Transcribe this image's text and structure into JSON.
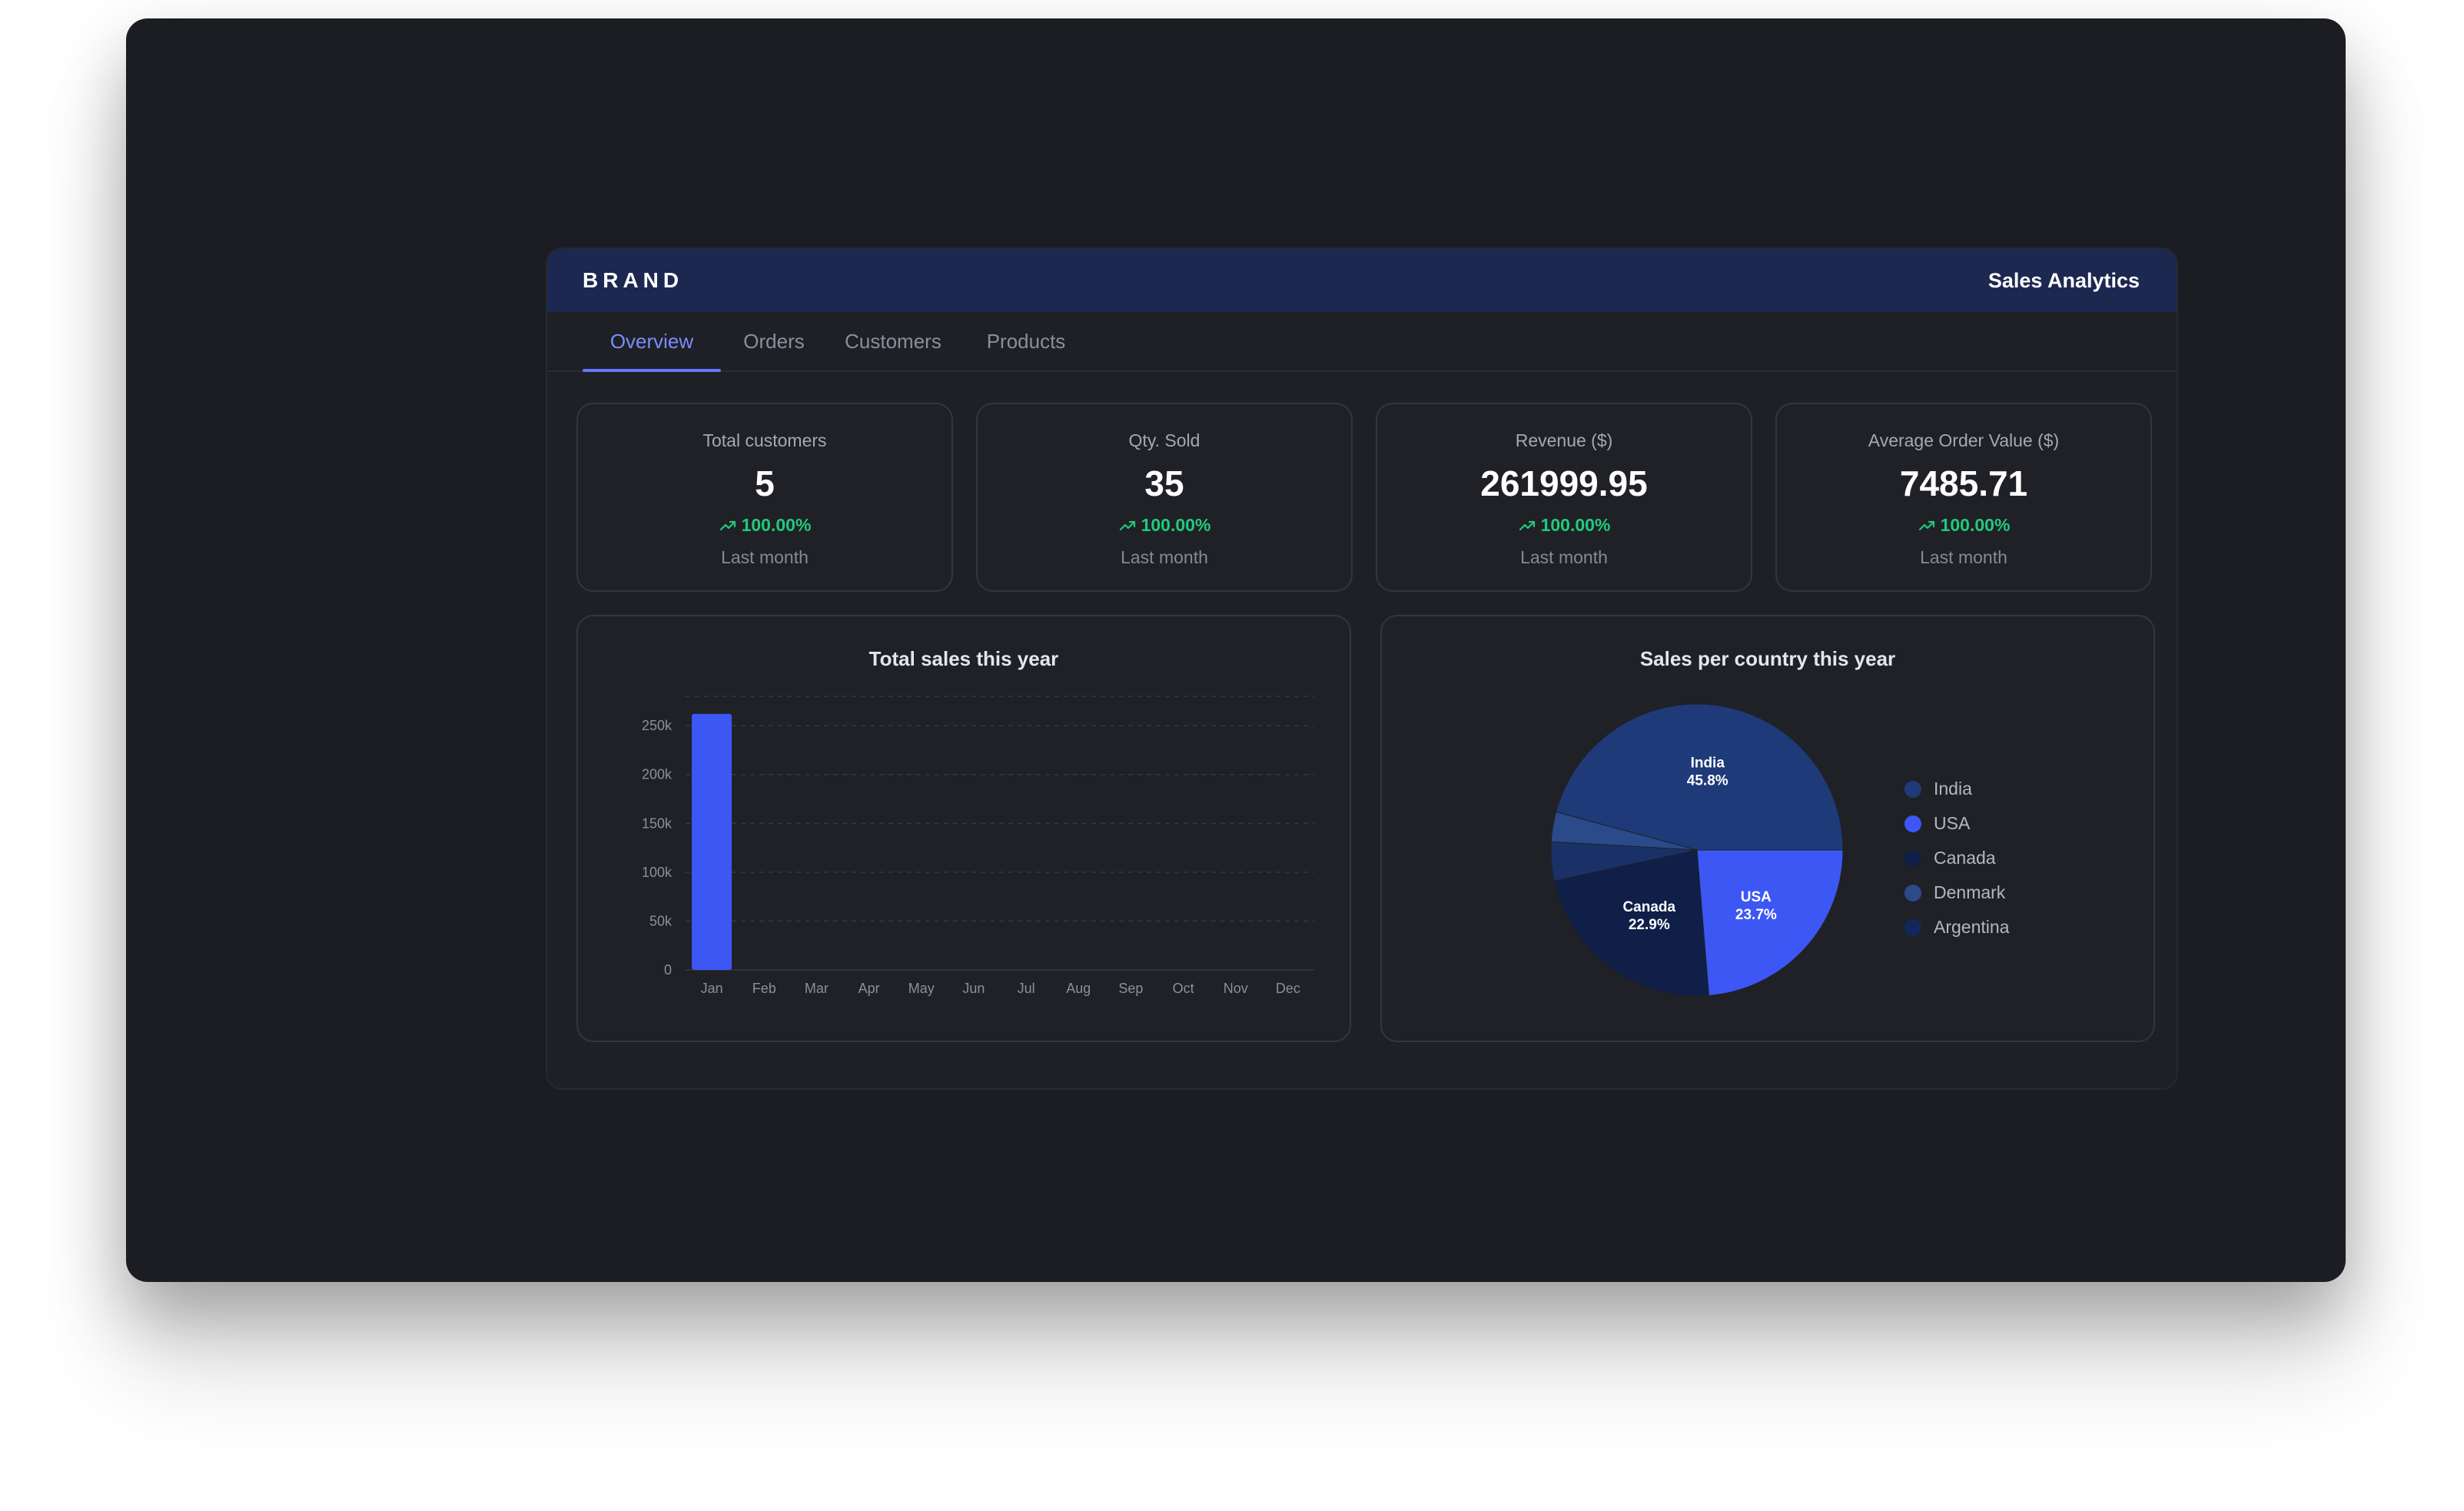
{
  "header": {
    "brand": "BRAND",
    "title": "Sales Analytics"
  },
  "tabs": [
    {
      "label": "Overview",
      "active": true
    },
    {
      "label": "Orders",
      "active": false
    },
    {
      "label": "Customers",
      "active": false
    },
    {
      "label": "Products",
      "active": false
    }
  ],
  "kpis": [
    {
      "label": "Total customers",
      "value": "5",
      "delta": "100.00%",
      "period": "Last month"
    },
    {
      "label": "Qty. Sold",
      "value": "35",
      "delta": "100.00%",
      "period": "Last month"
    },
    {
      "label": "Revenue ($)",
      "value": "261999.95",
      "delta": "100.00%",
      "period": "Last month"
    },
    {
      "label": "Average Order Value ($)",
      "value": "7485.71",
      "delta": "100.00%",
      "period": "Last month"
    }
  ],
  "colors": {
    "accent": "#6876ff",
    "positive": "#22c97a",
    "bar": "#3d57f5",
    "header_bg": "#1c2850"
  },
  "icons": {
    "delta": "trending-up-icon"
  },
  "chart_data": [
    {
      "type": "bar",
      "title": "Total sales this year",
      "categories": [
        "Jan",
        "Feb",
        "Mar",
        "Apr",
        "May",
        "Jun",
        "Jul",
        "Aug",
        "Sep",
        "Oct",
        "Nov",
        "Dec"
      ],
      "values": [
        262000,
        0,
        0,
        0,
        0,
        0,
        0,
        0,
        0,
        0,
        0,
        0
      ],
      "yticks": [
        0,
        50000,
        100000,
        150000,
        200000,
        250000
      ],
      "ytick_labels": [
        "0",
        "50k",
        "100k",
        "150k",
        "200k",
        "250k"
      ],
      "ylim": [
        0,
        280000
      ],
      "grid": true,
      "color": "#3d57f5"
    },
    {
      "type": "pie",
      "title": "Sales per country this year",
      "slices": [
        {
          "label": "India",
          "value": 45.8,
          "display": "45.8%",
          "color": "#1e3a78"
        },
        {
          "label": "Denmark",
          "value": 3.3,
          "display": "",
          "color": "#2a4a8a"
        },
        {
          "label": "Argentina",
          "value": 4.3,
          "display": "",
          "color": "#1a3168"
        },
        {
          "label": "Canada",
          "value": 22.9,
          "display": "22.9%",
          "color": "#0f1f48"
        },
        {
          "label": "USA",
          "value": 23.7,
          "display": "23.7%",
          "color": "#3d57f5"
        }
      ],
      "legend": [
        {
          "label": "India",
          "color": "#1e3a78"
        },
        {
          "label": "USA",
          "color": "#3d57f5"
        },
        {
          "label": "Canada",
          "color": "#0f1f48"
        },
        {
          "label": "Denmark",
          "color": "#2a4a8a"
        },
        {
          "label": "Argentina",
          "color": "#13275a"
        }
      ],
      "legend_position": "right"
    }
  ]
}
